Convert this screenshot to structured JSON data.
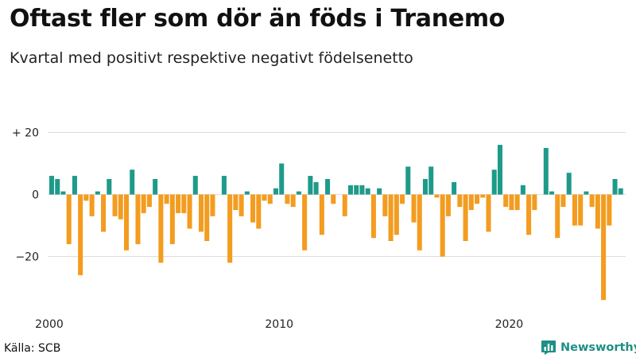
{
  "title": "Oftast fler som dör än föds i Tranemo",
  "subtitle": "Kvartal med positivt respektive negativt födelsenetto",
  "source": "Källa: SCB",
  "brand": {
    "name": "Newsworthy",
    "icon": "newsworthy-chart-icon",
    "color": "#1e8f84"
  },
  "colors": {
    "positive": "#1e9a8a",
    "negative": "#f39c1f",
    "grid": "#dddddd"
  },
  "chart_data": {
    "type": "bar",
    "title": "Oftast fler som dör än föds i Tranemo",
    "subtitle": "Kvartal med positivt respektive negativt födelsenetto",
    "xlabel": "",
    "ylabel": "",
    "ylim": [
      -34,
      26
    ],
    "y_ticks": [
      {
        "value": 20,
        "label": "+ 20"
      },
      {
        "value": 0,
        "label": "0"
      },
      {
        "value": -20,
        "label": "−20"
      }
    ],
    "x_start_year": 2000,
    "periods_per_year": 4,
    "x_ticks": [
      {
        "label": "2000",
        "index": 0
      },
      {
        "label": "2010",
        "index": 40
      },
      {
        "label": "2020",
        "index": 80
      }
    ],
    "values": [
      6,
      5,
      1,
      -16,
      6,
      -26,
      -2,
      -7,
      1,
      -12,
      5,
      -7,
      -8,
      -18,
      8,
      -16,
      -6,
      -4,
      5,
      -22,
      -3,
      -16,
      -6,
      -6,
      -11,
      6,
      -12,
      -15,
      -7,
      0,
      6,
      -22,
      -5,
      -7,
      1,
      -9,
      -11,
      -2,
      -3,
      2,
      10,
      -3,
      -4,
      1,
      -18,
      6,
      4,
      -13,
      5,
      -3,
      0,
      -7,
      3,
      3,
      3,
      2,
      -14,
      2,
      -7,
      -15,
      -13,
      -3,
      9,
      -9,
      -18,
      5,
      9,
      -1,
      -20,
      -7,
      4,
      -4,
      -15,
      -5,
      -3,
      -1,
      -12,
      8,
      16,
      -4,
      -5,
      -5,
      3,
      -13,
      -5,
      0,
      15,
      1,
      -14,
      -4,
      7,
      -10,
      -10,
      1,
      -4,
      -11,
      -34,
      -10,
      5,
      2
    ]
  }
}
